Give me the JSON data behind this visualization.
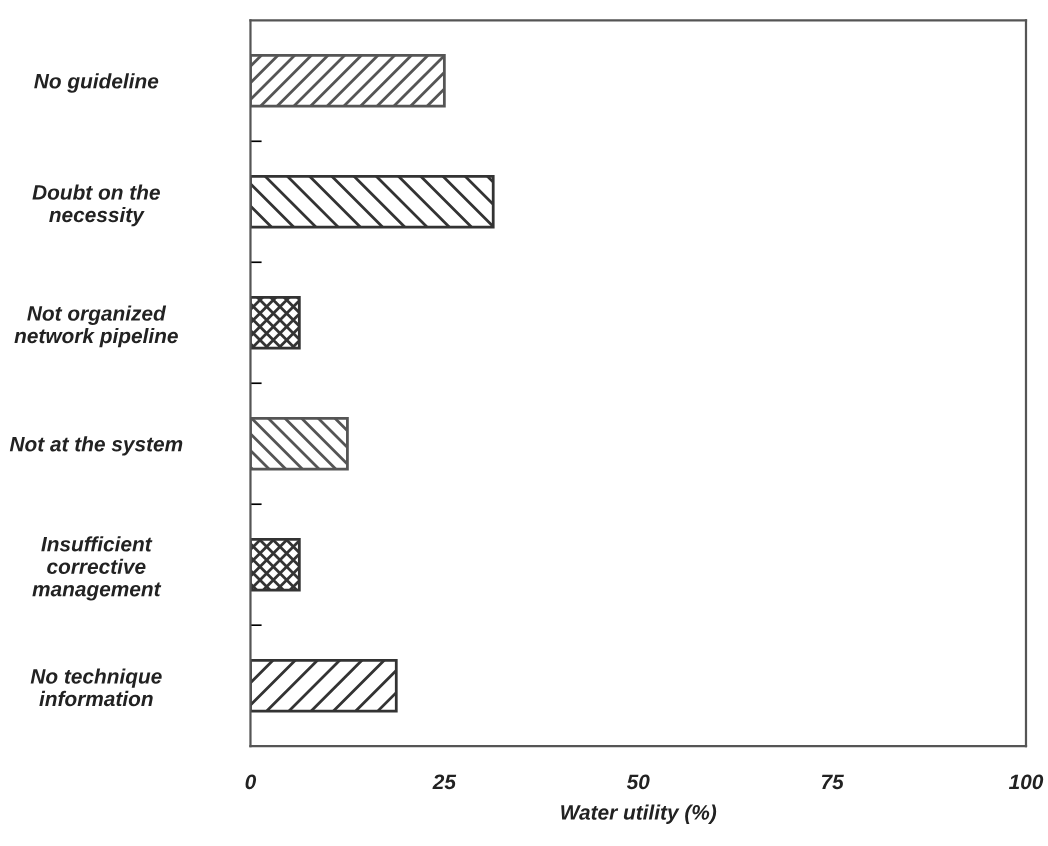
{
  "chart_data": {
    "type": "bar",
    "orientation": "horizontal",
    "categories": [
      "No guideline",
      "Doubt on the\nnecessity",
      "Not organized\nnetwork pipeline",
      "Not at the system",
      "Insufficient\ncorrective\nmanagement",
      "No technique\ninformation"
    ],
    "values": [
      25,
      31.3,
      6.3,
      12.5,
      6.3,
      18.8
    ],
    "colors": [
      "#555555",
      "#333333",
      "#333333",
      "#555555",
      "#333333",
      "#333333"
    ],
    "xlabel": "Water utility (%)",
    "xlim": [
      0,
      100
    ],
    "xticks": [
      0,
      25,
      50,
      75,
      100
    ],
    "grid": false
  }
}
